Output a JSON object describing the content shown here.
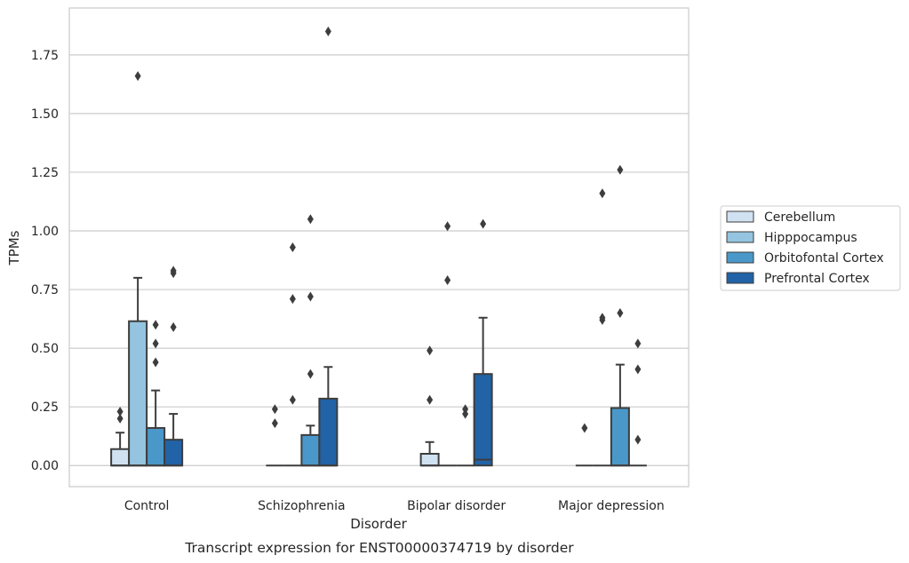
{
  "chart_data": {
    "type": "box",
    "caption": "Transcript expression for ENST00000374719 by disorder",
    "xlabel": "Disorder",
    "ylabel": "TPMs",
    "categories": [
      "Control",
      "Schizophrenia",
      "Bipolar disorder",
      "Major depression"
    ],
    "ylim": [
      -0.09,
      1.95
    ],
    "yticks": [
      0.0,
      0.25,
      0.5,
      0.75,
      1.0,
      1.25,
      1.5,
      1.75
    ],
    "ytick_labels": [
      "0.00",
      "0.25",
      "0.50",
      "0.75",
      "1.00",
      "1.25",
      "1.50",
      "1.75"
    ],
    "grid": true,
    "legend_position": "right",
    "hue_order": [
      "Cerebellum",
      "Hipppocampus",
      "Orbitofontal Cortex",
      "Prefrontal Cortex"
    ],
    "colors": {
      "Cerebellum": "#d0e1f2",
      "Hipppocampus": "#94c4df",
      "Orbitofontal Cortex": "#4a98c9",
      "Prefrontal Cortex": "#2163a6",
      "outline": "#3d3d3d",
      "grid": "#cccccc",
      "frame": "#cccccc"
    },
    "series": [
      {
        "name": "Cerebellum",
        "boxes": [
          {
            "q1": 0,
            "median": 0,
            "q3": 0.07,
            "whislo": 0,
            "whishi": 0.14,
            "fliers": [
              0.2,
              0.23
            ]
          },
          {
            "q1": 0,
            "median": 0,
            "q3": 0,
            "whislo": 0,
            "whishi": 0,
            "fliers": [
              0.18,
              0.24
            ]
          },
          {
            "q1": 0,
            "median": 0,
            "q3": 0.05,
            "whislo": 0,
            "whishi": 0.1,
            "fliers": [
              0.28,
              0.49
            ]
          },
          {
            "q1": 0,
            "median": 0,
            "q3": 0,
            "whislo": 0,
            "whishi": 0,
            "fliers": [
              0.16
            ]
          }
        ]
      },
      {
        "name": "Hipppocampus",
        "boxes": [
          {
            "q1": 0,
            "median": 0,
            "q3": 0.615,
            "whislo": 0,
            "whishi": 0.8,
            "fliers": [
              1.66
            ]
          },
          {
            "q1": 0,
            "median": 0,
            "q3": 0,
            "whislo": 0,
            "whishi": 0,
            "fliers": [
              0.28,
              0.71,
              0.93
            ]
          },
          {
            "q1": 0,
            "median": 0,
            "q3": 0,
            "whislo": 0,
            "whishi": 0,
            "fliers": [
              0.79,
              1.02
            ]
          },
          {
            "q1": 0,
            "median": 0,
            "q3": 0,
            "whislo": 0,
            "whishi": 0,
            "fliers": [
              0.62,
              0.63,
              1.16
            ]
          }
        ]
      },
      {
        "name": "Orbitofontal Cortex",
        "boxes": [
          {
            "q1": 0,
            "median": 0,
            "q3": 0.16,
            "whislo": 0,
            "whishi": 0.32,
            "fliers": [
              0.44,
              0.52,
              0.6
            ]
          },
          {
            "q1": 0,
            "median": 0,
            "q3": 0.13,
            "whislo": 0,
            "whishi": 0.17,
            "fliers": [
              0.39,
              0.72,
              1.05
            ]
          },
          {
            "q1": 0,
            "median": 0,
            "q3": 0,
            "whislo": 0,
            "whishi": 0,
            "fliers": [
              0.22,
              0.24
            ]
          },
          {
            "q1": 0,
            "median": 0,
            "q3": 0.245,
            "whislo": 0,
            "whishi": 0.43,
            "fliers": [
              0.65,
              1.26
            ]
          }
        ]
      },
      {
        "name": "Prefrontal Cortex",
        "boxes": [
          {
            "q1": 0,
            "median": 0,
            "q3": 0.11,
            "whislo": 0,
            "whishi": 0.22,
            "fliers": [
              0.59,
              0.82,
              0.83
            ]
          },
          {
            "q1": 0,
            "median": 0,
            "q3": 0.285,
            "whislo": 0,
            "whishi": 0.42,
            "fliers": [
              1.85
            ]
          },
          {
            "q1": 0,
            "median": 0.025,
            "q3": 0.39,
            "whislo": 0,
            "whishi": 0.63,
            "fliers": [
              1.03
            ]
          },
          {
            "q1": 0,
            "median": 0,
            "q3": 0,
            "whislo": 0,
            "whishi": 0,
            "fliers": [
              0.11,
              0.41,
              0.52
            ]
          }
        ]
      }
    ]
  }
}
